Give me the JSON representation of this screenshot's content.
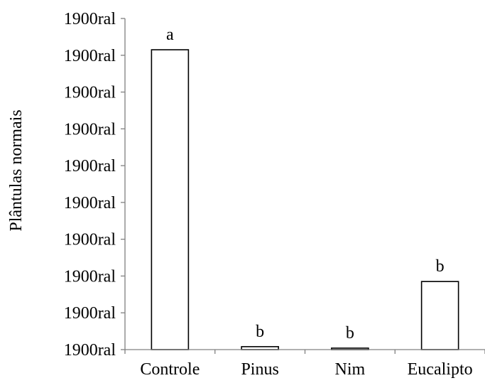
{
  "chart_data": {
    "type": "bar",
    "title": "",
    "xlabel": "",
    "ylabel": "Plântulas normais",
    "categories": [
      "Controle",
      "Pinus",
      "Nim",
      "Eucalipto"
    ],
    "values": [
      81.5,
      0.8,
      0.4,
      18.5
    ],
    "data_labels": [
      "a",
      "b",
      "b",
      "b"
    ],
    "ylim": [
      0,
      90
    ],
    "y_tick_labels": [
      "1900ral",
      "1900ral",
      "1900ral",
      "1900ral",
      "1900ral",
      "1900ral",
      "1900ral",
      "1900ral",
      "1900ral",
      "1900ral"
    ],
    "grid": false,
    "legend": "none",
    "bar_fill": "#ffffff",
    "bar_stroke": "#000000",
    "axis_color": "#808080"
  }
}
